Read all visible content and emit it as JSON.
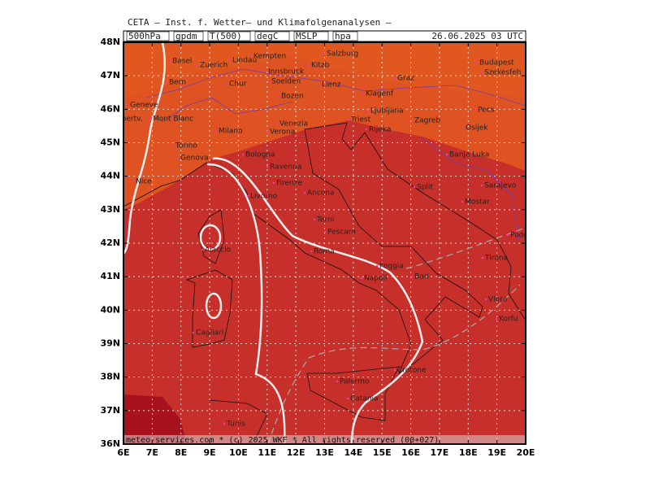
{
  "header": {
    "line1": "CETA – Inst. f. Wetter– und Klimafolgenanalysen –",
    "fields": [
      "500hPa",
      "gpdm",
      "T(500)",
      "degC",
      "MSLP",
      "hpa"
    ],
    "datetime": "26.06.2025 03 UTC"
  },
  "axis": {
    "lat_labels": [
      "48N",
      "47N",
      "46N",
      "45N",
      "44N",
      "43N",
      "42N",
      "41N",
      "40N",
      "39N",
      "38N",
      "37N",
      "36N"
    ],
    "lon_labels": [
      "6E",
      "7E",
      "8E",
      "9E",
      "10E",
      "11E",
      "12E",
      "13E",
      "14E",
      "15E",
      "16E",
      "17E",
      "18E",
      "19E",
      "20E"
    ]
  },
  "cities": [
    "Basel",
    "Zuerich",
    "Lindau",
    "Kempten",
    "Salzburg",
    "Budapest",
    "Szekesfeh",
    "Innsbruck",
    "Kitzb",
    "Bern",
    "Chur",
    "Soelden",
    "Lienz",
    "Graz",
    "Geneve",
    "Bozen",
    "Klagenf",
    "Ljubljana",
    "Pecs",
    "Albertv.",
    "Mont Blanc",
    "Venezia",
    "Triest",
    "Zagreb",
    "Milano",
    "Verona",
    "Rijeka",
    "Osijek",
    "Torino",
    "Genova",
    "Bologna",
    "Banja Luka",
    "Ravenna",
    "Nice",
    "Firenze",
    "Ancona",
    "Split",
    "Sarajevo",
    "Livorno",
    "Mostar",
    "Terni",
    "Pescara",
    "Podgorica",
    "Ajaccio",
    "Roma",
    "Tirana",
    "Foggia",
    "Bari",
    "Napoli",
    "Vlora",
    "Korfu",
    "Cagliari",
    "Crotone",
    "Palermo",
    "Catania",
    "Tunis"
  ],
  "footer": "meteo-services.com * (c) 2025 WKF * All rights reserved (00+027)"
}
